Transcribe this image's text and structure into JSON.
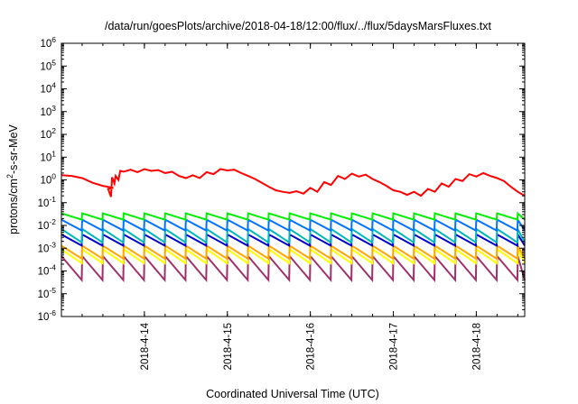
{
  "chart_data": {
    "type": "line",
    "title": "/data/run/goesPlots/archive/2018-04-18/12:00/flux/../flux/5daysMarsFluxes.txt",
    "xlabel": "Coordinated Universal Time (UTC)",
    "ylabel_parts": [
      "protons/cm",
      "2",
      "-s-sr-MeV"
    ],
    "ylog": true,
    "ylim_exp": [
      -6,
      6
    ],
    "xlim": [
      "2018-04-13 00:00",
      "2018-04-18 14:00"
    ],
    "xticks": [
      "2018-4-14",
      "2018-4-15",
      "2018-4-16",
      "2018-4-17",
      "2018-4-18"
    ],
    "grid": false,
    "legend": "none",
    "series": [
      {
        "color": "#ff0000",
        "sawtooth": false,
        "x": [
          "2018-04-13 00:00",
          "2018-04-13 03:00",
          "2018-04-13 06:00",
          "2018-04-13 09:00",
          "2018-04-13 12:00",
          "2018-04-13 15:00",
          "2018-04-13 13:30",
          "2018-04-13 14:20",
          "2018-04-13 14:40",
          "2018-04-13 15:20",
          "2018-04-13 15:40",
          "2018-04-13 16:30",
          "2018-04-13 17:00",
          "2018-04-13 18:00",
          "2018-04-13 20:00",
          "2018-04-13 22:00",
          "2018-04-14 00:00",
          "2018-04-14 02:00",
          "2018-04-14 04:00",
          "2018-04-14 06:00",
          "2018-04-14 08:00",
          "2018-04-14 10:00",
          "2018-04-14 12:00",
          "2018-04-14 14:00",
          "2018-04-14 16:00",
          "2018-04-14 18:00",
          "2018-04-14 20:00",
          "2018-04-14 22:00",
          "2018-04-15 00:00",
          "2018-04-15 02:00",
          "2018-04-15 04:00",
          "2018-04-15 06:00",
          "2018-04-15 08:00",
          "2018-04-15 10:00",
          "2018-04-15 12:00",
          "2018-04-15 14:00",
          "2018-04-15 16:00",
          "2018-04-15 18:00",
          "2018-04-15 20:00",
          "2018-04-15 22:00",
          "2018-04-16 00:00",
          "2018-04-16 02:00",
          "2018-04-16 04:00",
          "2018-04-16 06:00",
          "2018-04-16 08:00",
          "2018-04-16 10:00",
          "2018-04-16 12:00",
          "2018-04-16 14:00",
          "2018-04-16 16:00",
          "2018-04-16 18:00",
          "2018-04-16 20:00",
          "2018-04-16 22:00",
          "2018-04-17 00:00",
          "2018-04-17 02:00",
          "2018-04-17 04:00",
          "2018-04-17 06:00",
          "2018-04-17 08:00",
          "2018-04-17 10:00",
          "2018-04-17 12:00",
          "2018-04-17 14:00",
          "2018-04-17 16:00",
          "2018-04-17 18:00",
          "2018-04-17 20:00",
          "2018-04-17 22:00",
          "2018-04-18 00:00",
          "2018-04-18 02:00",
          "2018-04-18 04:00",
          "2018-04-18 06:00",
          "2018-04-18 08:00",
          "2018-04-18 10:00",
          "2018-04-18 12:00",
          "2018-04-18 14:00"
        ],
        "y": [
          1.6,
          1.5,
          1.2,
          0.75,
          0.55,
          0.45,
          0.4,
          0.18,
          1.3,
          0.7,
          1.5,
          1.0,
          2.5,
          2.3,
          2.8,
          2.2,
          3.0,
          2.5,
          2.7,
          2.0,
          2.3,
          1.5,
          1.2,
          1.6,
          1.2,
          2.2,
          1.8,
          3.0,
          2.6,
          2.8,
          2.0,
          1.5,
          1.1,
          0.75,
          0.5,
          0.35,
          0.3,
          0.27,
          0.32,
          0.25,
          0.45,
          0.3,
          0.8,
          0.6,
          1.5,
          1.1,
          1.9,
          1.4,
          1.7,
          1.1,
          0.8,
          0.55,
          0.35,
          0.3,
          0.22,
          0.3,
          0.2,
          0.4,
          0.3,
          0.7,
          0.5,
          1.1,
          0.9,
          1.8,
          1.4,
          2.0,
          1.5,
          1.2,
          0.9,
          0.5,
          0.3,
          0.2
        ]
      },
      {
        "color": "#00ee00",
        "sawtooth": true,
        "period_hours": 6,
        "peak": 0.034,
        "trough": 0.018
      },
      {
        "color": "#0072ff",
        "sawtooth": true,
        "period_hours": 6,
        "peak": 0.018,
        "trough": 0.006
      },
      {
        "color": "#00b8b8",
        "sawtooth": true,
        "period_hours": 6,
        "peak": 0.007,
        "trough": 0.0018
      },
      {
        "color": "#0000cc",
        "sawtooth": true,
        "period_hours": 6,
        "peak": 0.004,
        "trough": 0.0013
      },
      {
        "color": "#ffa500",
        "sawtooth": true,
        "period_hours": 6,
        "peak": 0.0013,
        "trough": 0.00035
      },
      {
        "color": "#ffff00",
        "sawtooth": true,
        "period_hours": 6,
        "peak": 0.0009,
        "trough": 0.00022
      },
      {
        "color": "#a0306a",
        "sawtooth": true,
        "period_hours": 6,
        "peak": 0.00045,
        "trough": 4e-05
      }
    ]
  }
}
